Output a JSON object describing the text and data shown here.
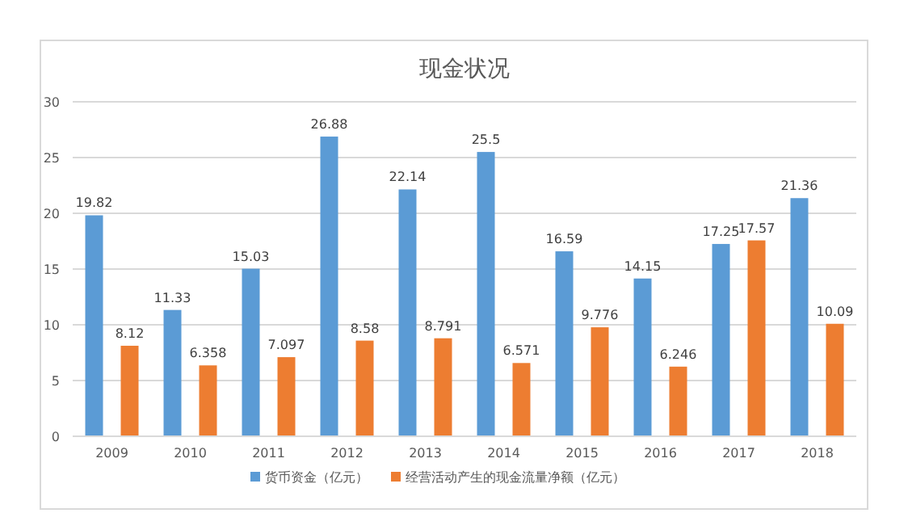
{
  "chart_data": {
    "type": "bar",
    "title": "现金状况",
    "categories": [
      "2009",
      "2010",
      "2011",
      "2012",
      "2013",
      "2014",
      "2015",
      "2016",
      "2017",
      "2018"
    ],
    "series": [
      {
        "name": "货币资金（亿元）",
        "color": "#5b9bd5",
        "values": [
          19.82,
          11.33,
          15.03,
          26.88,
          22.14,
          25.5,
          16.59,
          14.15,
          17.25,
          21.36
        ]
      },
      {
        "name": "经营活动产生的现金流量净额（亿元）",
        "color": "#ed7d31",
        "values": [
          8.12,
          6.358,
          7.097,
          8.58,
          8.791,
          6.571,
          9.776,
          6.246,
          17.57,
          10.09
        ]
      }
    ],
    "ylim": [
      0,
      30
    ],
    "yticks": [
      0,
      5,
      10,
      15,
      20,
      25,
      30
    ],
    "grid": "y",
    "legend": "bottom",
    "data_labels": true
  }
}
